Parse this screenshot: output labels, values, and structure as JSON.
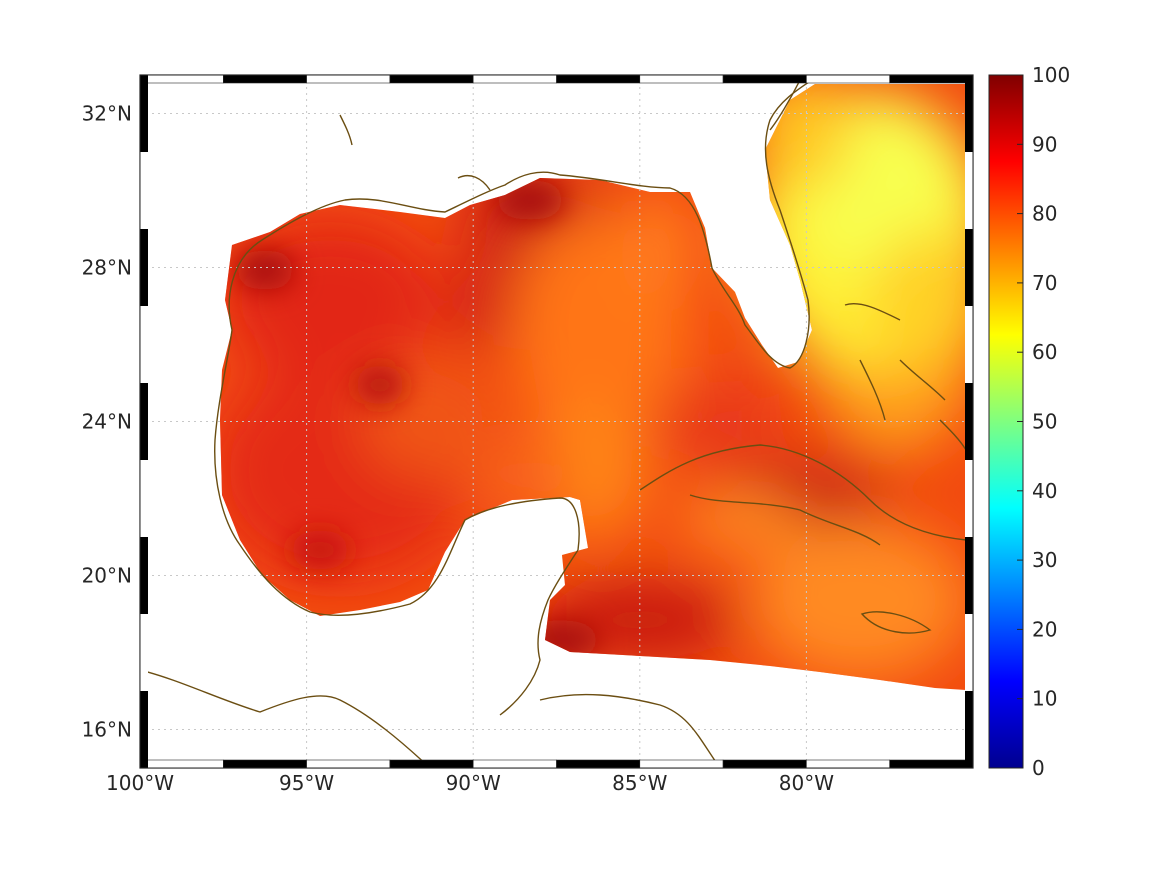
{
  "chart_data": {
    "type": "heatmap",
    "title": "",
    "xlabel": "",
    "ylabel": "",
    "x_ticks": [
      "100°W",
      "95°W",
      "90°W",
      "85°W",
      "80°W"
    ],
    "x_tick_values": [
      -100,
      -95,
      -90,
      -85,
      -80
    ],
    "y_ticks": [
      "16°N",
      "20°N",
      "24°N",
      "28°N",
      "32°N"
    ],
    "y_tick_values": [
      16,
      20,
      24,
      28,
      32
    ],
    "xlim": [
      -100,
      -75
    ],
    "ylim": [
      15,
      33
    ],
    "grid": true,
    "colorbar": {
      "labels": [
        "0",
        "10",
        "20",
        "30",
        "40",
        "50",
        "60",
        "70",
        "80",
        "90",
        "100"
      ],
      "values": [
        0,
        10,
        20,
        30,
        40,
        50,
        60,
        70,
        80,
        90,
        100
      ],
      "range": [
        0,
        100
      ],
      "colormap": "jet",
      "placement": "right"
    },
    "field_summary": [
      {
        "region": "Western Gulf of Mexico",
        "approx_value": 88
      },
      {
        "region": "Central Gulf of Mexico",
        "approx_value": 84
      },
      {
        "region": "Northeast Gulf near Mississippi delta",
        "approx_value": 93
      },
      {
        "region": "Northwestern Caribbean",
        "approx_value": 88
      },
      {
        "region": "Atlantic east of Florida",
        "approx_value": 67
      },
      {
        "region": "Southeast of Cuba",
        "approx_value": 80
      }
    ],
    "colors": {
      "coastline": "#6b4e12",
      "grid": "#c8c8c8"
    }
  }
}
